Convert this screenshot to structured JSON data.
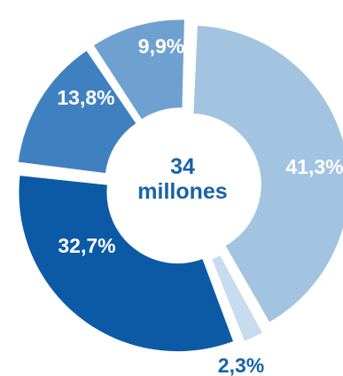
{
  "chart_data": {
    "type": "pie",
    "style": "exploded-donut",
    "center_label": {
      "value": "34",
      "unit": "millones"
    },
    "slices": [
      {
        "label": "41,3%",
        "value": 41.3,
        "color": "#a3c4e0",
        "label_color": "#ffffff"
      },
      {
        "label": "2,3%",
        "value": 2.3,
        "color": "#c7dcef",
        "label_color": "#1763a8"
      },
      {
        "label": "32,7%",
        "value": 32.7,
        "color": "#0c5aa6",
        "label_color": "#ffffff"
      },
      {
        "label": "13,8%",
        "value": 13.8,
        "color": "#3f81c0",
        "label_color": "#ffffff"
      },
      {
        "label": "9,9%",
        "value": 9.9,
        "color": "#6ea1d0",
        "label_color": "#ffffff"
      }
    ],
    "center_text_color": "#1763a8"
  }
}
